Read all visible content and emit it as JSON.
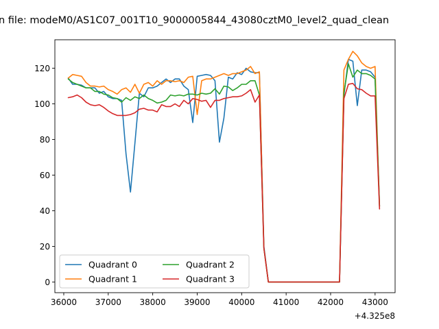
{
  "chart_data": {
    "type": "line",
    "title": "n file: modeM0/AS1C07_001T10_9000005844_43080cztM0_level2_quad_clean",
    "x_offset_label": "+4.325e8",
    "xlim": [
      35800,
      43450
    ],
    "ylim": [
      -6,
      136
    ],
    "x_ticks": [
      36000,
      37000,
      38000,
      39000,
      40000,
      41000,
      42000,
      43000
    ],
    "x_tick_labels": [
      "36000",
      "37000",
      "38000",
      "39000",
      "40000",
      "41000",
      "42000",
      "43000"
    ],
    "y_ticks": [
      0,
      20,
      40,
      60,
      80,
      100,
      120
    ],
    "y_tick_labels": [
      "0",
      "20",
      "40",
      "60",
      "80",
      "100",
      "120"
    ],
    "grid": false,
    "legend_placement": "lower-left",
    "series": [
      {
        "name": "Quadrant 0",
        "color": "#1f77b4",
        "x": [
          36100,
          36200,
          36300,
          36400,
          36500,
          36600,
          36700,
          36800,
          36900,
          37000,
          37100,
          37200,
          37300,
          37400,
          37500,
          37600,
          37700,
          37800,
          37900,
          38000,
          38100,
          38200,
          38300,
          38400,
          38500,
          38600,
          38700,
          38800,
          38900,
          39000,
          39100,
          39200,
          39300,
          39400,
          39500,
          39600,
          39700,
          39800,
          39900,
          40000,
          40100,
          40200,
          40300,
          40400,
          40500,
          40600,
          42200,
          42300,
          42400,
          42500,
          42600,
          42700,
          42800,
          42900,
          43000,
          43100
        ],
        "y": [
          114.5,
          111,
          111,
          110.5,
          109,
          109,
          109,
          106,
          107,
          104,
          103,
          103,
          102,
          72,
          50.5,
          78,
          106,
          104,
          109,
          109,
          110,
          112,
          114,
          112,
          114,
          114,
          110,
          108,
          89.5,
          115.5,
          116,
          116.5,
          116,
          113,
          78.5,
          92,
          115,
          114,
          117.5,
          116.5,
          120,
          118,
          117.5,
          117.5,
          20,
          0,
          0,
          105,
          125,
          124,
          99,
          119,
          119,
          118,
          115,
          42.5
        ]
      },
      {
        "name": "Quadrant 1",
        "color": "#ff7f0e",
        "x": [
          36100,
          36200,
          36300,
          36400,
          36500,
          36600,
          36700,
          36800,
          36900,
          37000,
          37100,
          37200,
          37300,
          37400,
          37500,
          37600,
          37700,
          37800,
          37900,
          38000,
          38100,
          38200,
          38300,
          38400,
          38500,
          38600,
          38700,
          38800,
          38900,
          39000,
          39100,
          39200,
          39300,
          39400,
          39500,
          39600,
          39700,
          39800,
          39900,
          40000,
          40100,
          40200,
          40300,
          40400,
          40500,
          40600,
          42200,
          42300,
          42400,
          42500,
          42600,
          42700,
          42800,
          42900,
          43000,
          43100
        ],
        "y": [
          114.5,
          116.5,
          116,
          115.5,
          112,
          110,
          110,
          109.5,
          110,
          108,
          107,
          105.5,
          108,
          109,
          106.5,
          111,
          106,
          111,
          112,
          110,
          113,
          111,
          113,
          113,
          112.5,
          113,
          112,
          115,
          115.5,
          94,
          113,
          114,
          114,
          115,
          116,
          117,
          116,
          117,
          117,
          118,
          119,
          121,
          117,
          118,
          19,
          0,
          0,
          119,
          125,
          129.5,
          127,
          123,
          121,
          120,
          121,
          42.5
        ]
      },
      {
        "name": "Quadrant 2",
        "color": "#2ca02c",
        "x": [
          36100,
          36200,
          36300,
          36400,
          36500,
          36600,
          36700,
          36800,
          36900,
          37000,
          37100,
          37200,
          37300,
          37400,
          37500,
          37600,
          37700,
          37800,
          37900,
          38000,
          38100,
          38200,
          38300,
          38400,
          38500,
          38600,
          38700,
          38800,
          38900,
          39000,
          39100,
          39200,
          39300,
          39400,
          39500,
          39600,
          39700,
          39800,
          39900,
          40000,
          40100,
          40200,
          40300,
          40400,
          40500,
          40600,
          42200,
          42300,
          42400,
          42500,
          42600,
          42700,
          42800,
          42900,
          43000,
          43100
        ],
        "y": [
          114,
          112,
          111,
          110,
          109,
          109,
          107,
          107,
          105.5,
          105,
          103.5,
          103,
          101,
          103.5,
          102,
          104,
          103,
          105,
          103,
          102,
          100.5,
          101,
          102,
          105,
          104.5,
          105,
          104.5,
          105.5,
          105.5,
          105,
          106,
          105.5,
          106,
          108.5,
          105.5,
          110,
          109.5,
          107.5,
          109,
          111,
          111,
          113,
          113,
          105,
          19,
          0,
          0,
          106,
          122.5,
          115,
          119,
          117,
          117,
          116,
          114,
          42.5
        ]
      },
      {
        "name": "Quadrant 3",
        "color": "#d62728",
        "x": [
          36100,
          36200,
          36300,
          36400,
          36500,
          36600,
          36700,
          36800,
          36900,
          37000,
          37100,
          37200,
          37300,
          37400,
          37500,
          37600,
          37700,
          37800,
          37900,
          38000,
          38100,
          38200,
          38300,
          38400,
          38500,
          38600,
          38700,
          38800,
          38900,
          39000,
          39100,
          39200,
          39300,
          39400,
          39500,
          39600,
          39700,
          39800,
          39900,
          40000,
          40100,
          40200,
          40300,
          40400,
          40500,
          40600,
          42200,
          42300,
          42400,
          42500,
          42600,
          42700,
          42800,
          42900,
          43000,
          43100
        ],
        "y": [
          103.5,
          104,
          105,
          103.5,
          101,
          99.5,
          99,
          99.5,
          98,
          96,
          94.5,
          93.5,
          93.5,
          93.5,
          94,
          95,
          97,
          97.5,
          96.5,
          96.5,
          95.5,
          99.5,
          98.5,
          98.5,
          100,
          98.5,
          102,
          100,
          103,
          102.5,
          101.5,
          102,
          98,
          102,
          102,
          103,
          103.5,
          104,
          104,
          104.5,
          106,
          108,
          101,
          105,
          19,
          0,
          0,
          103,
          111,
          111.5,
          108.5,
          108,
          106,
          104.5,
          104.5,
          41
        ]
      }
    ]
  }
}
